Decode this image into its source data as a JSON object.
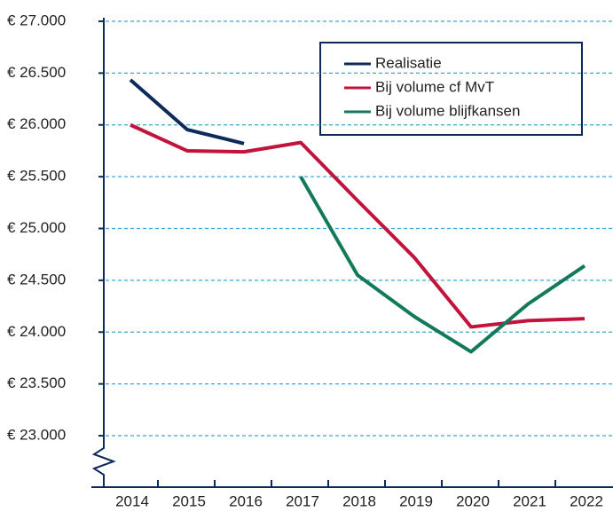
{
  "chart_data": {
    "type": "line",
    "categories": [
      "2014",
      "2015",
      "2016",
      "2017",
      "2018",
      "2019",
      "2020",
      "2021",
      "2022"
    ],
    "series": [
      {
        "name": "Realisatie",
        "color": "#0d2a5a",
        "values": [
          26435,
          25955,
          25820,
          null,
          null,
          null,
          null,
          null,
          null
        ]
      },
      {
        "name": "Bij volume cf MvT",
        "color": "#c0143c",
        "values": [
          26000,
          25750,
          25740,
          25830,
          25270,
          24720,
          24050,
          24110,
          24130
        ]
      },
      {
        "name": "Bij volume blijfkansen",
        "color": "#127a5a",
        "values": [
          null,
          null,
          null,
          25500,
          24550,
          24150,
          23810,
          24270,
          24640
        ]
      }
    ],
    "ylim": [
      22500,
      27000
    ],
    "yticks": [
      {
        "value": 23000,
        "label": "€ 23.000"
      },
      {
        "value": 23500,
        "label": "€ 23.500"
      },
      {
        "value": 24000,
        "label": "€ 24.000"
      },
      {
        "value": 24500,
        "label": "€ 24.500"
      },
      {
        "value": 25000,
        "label": "€ 25.000"
      },
      {
        "value": 25500,
        "label": "€ 25.500"
      },
      {
        "value": 26000,
        "label": "€ 26.000"
      },
      {
        "value": 26500,
        "label": "€ 26.500"
      },
      {
        "value": 27000,
        "label": "€ 27.000"
      }
    ],
    "grid": true,
    "legend": "upper right"
  }
}
